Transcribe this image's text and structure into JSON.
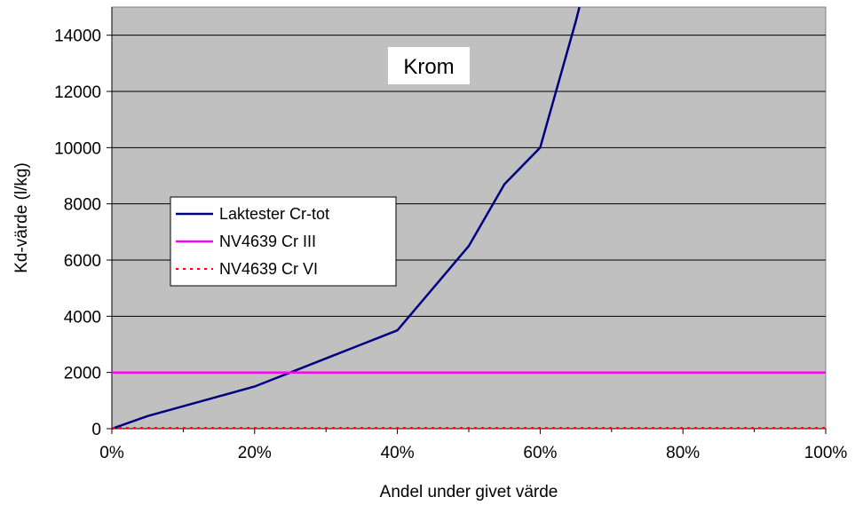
{
  "chart_data": {
    "type": "line",
    "title": "",
    "annotation": "Krom",
    "xlabel": "Andel under givet värde",
    "ylabel": "Kd-värde (l/kg)",
    "xlim": [
      0,
      100
    ],
    "ylim": [
      0,
      15000
    ],
    "x_ticks": [
      "0%",
      "20%",
      "40%",
      "60%",
      "80%",
      "100%"
    ],
    "x_tick_values": [
      0,
      20,
      40,
      60,
      80,
      100
    ],
    "y_ticks": [
      "0",
      "2000",
      "4000",
      "6000",
      "8000",
      "10000",
      "12000",
      "14000"
    ],
    "y_tick_values": [
      0,
      2000,
      4000,
      6000,
      8000,
      10000,
      12000,
      14000
    ],
    "plot_background": "#C0C0C0",
    "grid": "horizontal",
    "legend_position": "left-middle",
    "series": [
      {
        "name": "Laktester Cr-tot",
        "color": "#000080",
        "style": "solid",
        "x": [
          0,
          5,
          10,
          15,
          20,
          25,
          30,
          35,
          40,
          45,
          50,
          55,
          60,
          65,
          65.5
        ],
        "y": [
          0,
          450,
          800,
          1150,
          1500,
          2000,
          2500,
          3000,
          3500,
          5000,
          6500,
          8700,
          10000,
          14500,
          15000
        ]
      },
      {
        "name": "NV4639 Cr III",
        "color": "#FF00FF",
        "style": "solid",
        "x": [
          0,
          100
        ],
        "y": [
          2000,
          2000
        ]
      },
      {
        "name": "NV4639 Cr VI",
        "color": "#FF0000",
        "style": "dotted",
        "x": [
          0,
          100
        ],
        "y": [
          30,
          30
        ]
      }
    ]
  }
}
